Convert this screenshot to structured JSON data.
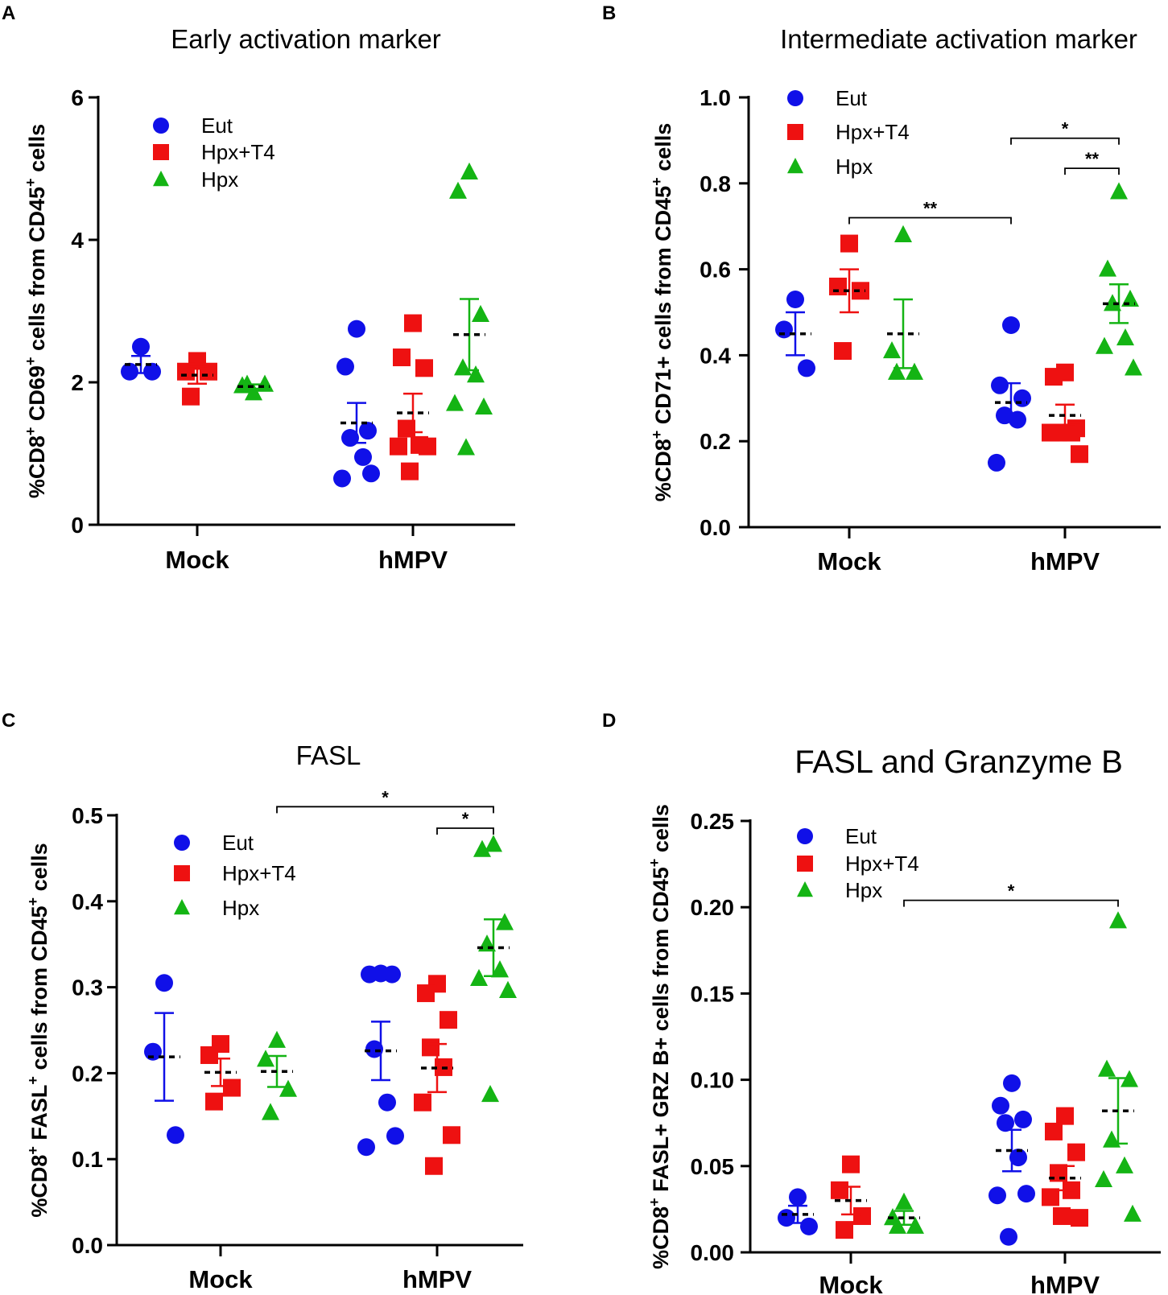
{
  "legend_labels": [
    "Eut",
    "Hpx+T4",
    "Hpx"
  ],
  "colors": {
    "Eut": "#1010e8",
    "Hpx+T4": "#ee1111",
    "Hpx": "#14b414"
  },
  "chart_data": [
    {
      "panel": "A",
      "type": "scatter",
      "title": "Early activation marker",
      "ylabel_parts": [
        "%CD8",
        "+",
        " CD69",
        "+",
        " cells from CD45",
        "+",
        " cells"
      ],
      "categories": [
        "Mock",
        "hMPV"
      ],
      "ylim": [
        0,
        6
      ],
      "yticks": [
        "0",
        "2",
        "4",
        "6"
      ],
      "series": [
        {
          "name": "Eut",
          "Mock": [
            2.5,
            2.15,
            2.15
          ],
          "hMPV": [
            2.75,
            2.22,
            1.32,
            1.22,
            0.95,
            0.65,
            0.72
          ],
          "mean": [
            2.25,
            1.43
          ],
          "sem": [
            0.12,
            0.28
          ]
        },
        {
          "name": "Hpx+T4",
          "Mock": [
            2.3,
            2.15,
            2.15,
            1.8
          ],
          "hMPV": [
            2.83,
            2.35,
            2.2,
            1.35,
            1.12,
            1.1,
            1.1,
            0.75
          ],
          "mean": [
            2.1,
            1.57
          ],
          "sem": [
            0.12,
            0.27
          ]
        },
        {
          "name": "Hpx",
          "Mock": [
            1.85,
            1.95,
            1.97,
            1.97
          ],
          "hMPV": [
            4.95,
            4.68,
            2.95,
            2.2,
            2.1,
            1.7,
            1.65,
            1.08
          ],
          "mean": [
            1.94,
            2.67
          ],
          "sem": [
            0.03,
            0.5
          ]
        }
      ],
      "significance": []
    },
    {
      "panel": "B",
      "type": "scatter",
      "title": "Intermediate activation marker",
      "ylabel_parts": [
        "%CD8",
        "+",
        " CD71+ cells from CD45",
        "+",
        " cells"
      ],
      "categories": [
        "Mock",
        "hMPV"
      ],
      "ylim": [
        0,
        1.0
      ],
      "yticks": [
        "0.0",
        "0.2",
        "0.4",
        "0.6",
        "0.8",
        "1.0"
      ],
      "series": [
        {
          "name": "Eut",
          "Mock": [
            0.53,
            0.46,
            0.37
          ],
          "hMPV": [
            0.47,
            0.33,
            0.3,
            0.26,
            0.25,
            0.15
          ],
          "mean": [
            0.45,
            0.29
          ],
          "sem": [
            0.05,
            0.045
          ]
        },
        {
          "name": "Hpx+T4",
          "Mock": [
            0.66,
            0.56,
            0.55,
            0.41
          ],
          "hMPV": [
            0.36,
            0.35,
            0.23,
            0.22,
            0.22,
            0.22,
            0.17
          ],
          "mean": [
            0.55,
            0.26
          ],
          "sem": [
            0.05,
            0.025
          ]
        },
        {
          "name": "Hpx",
          "Mock": [
            0.68,
            0.41,
            0.36,
            0.36
          ],
          "hMPV": [
            0.78,
            0.6,
            0.53,
            0.52,
            0.44,
            0.42,
            0.37
          ],
          "mean": [
            0.45,
            0.52
          ],
          "sem": [
            0.08,
            0.045
          ]
        }
      ],
      "significance": [
        {
          "label": "**",
          "from": "Mock-Hpx+T4",
          "to": "hMPV-Eut",
          "y": 0.72
        },
        {
          "label": "*",
          "from": "hMPV-Eut",
          "to": "hMPV-Hpx",
          "y": 0.905
        },
        {
          "label": "**",
          "from": "hMPV-Hpx+T4",
          "to": "hMPV-Hpx",
          "y": 0.835
        }
      ]
    },
    {
      "panel": "C",
      "type": "scatter",
      "title": "FASL",
      "ylabel_parts": [
        "%CD8",
        "+",
        " FASL",
        "+",
        " cells from CD45",
        "+",
        " cells"
      ],
      "categories": [
        "Mock",
        "hMPV"
      ],
      "ylim": [
        0,
        0.5
      ],
      "yticks": [
        "0.0",
        "0.1",
        "0.2",
        "0.3",
        "0.4",
        "0.5"
      ],
      "series": [
        {
          "name": "Eut",
          "Mock": [
            0.305,
            0.225,
            0.128
          ],
          "hMPV": [
            0.316,
            0.315,
            0.315,
            0.228,
            0.166,
            0.114,
            0.127
          ],
          "mean": [
            0.219,
            0.226
          ],
          "sem": [
            0.051,
            0.034
          ]
        },
        {
          "name": "Hpx+T4",
          "Mock": [
            0.234,
            0.221,
            0.183,
            0.167
          ],
          "hMPV": [
            0.304,
            0.293,
            0.262,
            0.23,
            0.207,
            0.166,
            0.128,
            0.092
          ],
          "mean": [
            0.201,
            0.206
          ],
          "sem": [
            0.016,
            0.028
          ]
        },
        {
          "name": "Hpx",
          "Mock": [
            0.238,
            0.216,
            0.181,
            0.154
          ],
          "hMPV": [
            0.466,
            0.46,
            0.375,
            0.35,
            0.32,
            0.31,
            0.296,
            0.175
          ],
          "mean": [
            0.202,
            0.346
          ],
          "sem": [
            0.018,
            0.033
          ]
        }
      ],
      "significance": [
        {
          "label": "*",
          "from": "Mock-Hpx",
          "to": "hMPV-Hpx",
          "y": 0.51
        },
        {
          "label": "*",
          "from": "hMPV-Hpx+T4",
          "to": "hMPV-Hpx",
          "y": 0.485
        }
      ]
    },
    {
      "panel": "D",
      "type": "scatter",
      "title": "FASL and Granzyme B",
      "ylabel_parts": [
        "%CD8",
        "+",
        " FASL+ GRZ B+ cells from CD45",
        "+",
        " cells"
      ],
      "categories": [
        "Mock",
        "hMPV"
      ],
      "ylim": [
        0,
        0.25
      ],
      "yticks": [
        "0.00",
        "0.05",
        "0.10",
        "0.15",
        "0.20",
        "0.25"
      ],
      "series": [
        {
          "name": "Eut",
          "Mock": [
            0.032,
            0.02,
            0.015
          ],
          "hMPV": [
            0.098,
            0.085,
            0.077,
            0.075,
            0.055,
            0.033,
            0.034,
            0.009
          ],
          "mean": [
            0.022,
            0.059
          ],
          "sem": [
            0.005,
            0.012
          ]
        },
        {
          "name": "Hpx+T4",
          "Mock": [
            0.051,
            0.036,
            0.021,
            0.013
          ],
          "hMPV": [
            0.079,
            0.07,
            0.058,
            0.046,
            0.036,
            0.032,
            0.02,
            0.021
          ],
          "mean": [
            0.03,
            0.043
          ],
          "sem": [
            0.008,
            0.007
          ]
        },
        {
          "name": "Hpx",
          "Mock": [
            0.029,
            0.02,
            0.015,
            0.015
          ],
          "hMPV": [
            0.192,
            0.106,
            0.1,
            0.065,
            0.05,
            0.042,
            0.022
          ],
          "mean": [
            0.02,
            0.082
          ],
          "sem": [
            0.004,
            0.019
          ]
        }
      ],
      "significance": [
        {
          "label": "*",
          "from": "Mock-Hpx",
          "to": "hMPV-Hpx",
          "y": 0.204
        }
      ]
    }
  ]
}
